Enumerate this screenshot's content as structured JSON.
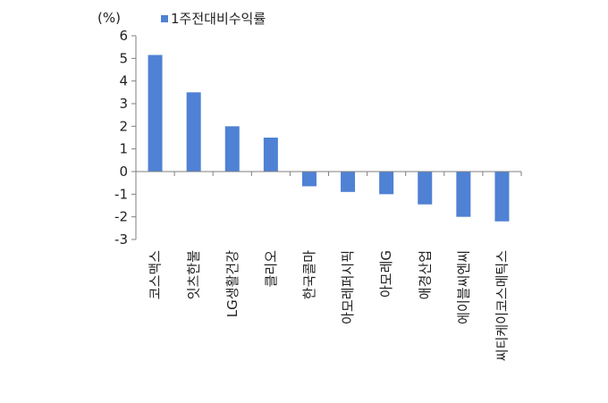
{
  "chart_data": {
    "type": "bar",
    "unit_label": "(%)",
    "legend": {
      "position": "top",
      "entries": [
        "1주전대비수익률"
      ]
    },
    "series": [
      {
        "name": "1주전대비수익률",
        "color": "#4f81d4",
        "values": [
          5.15,
          3.5,
          2.0,
          1.5,
          -0.65,
          -0.9,
          -1.0,
          -1.45,
          -2.0,
          -2.2
        ]
      }
    ],
    "categories": [
      "코스맥스",
      "잇츠한불",
      "LG생활건강",
      "클리오",
      "한국콜마",
      "아모레퍼시픽",
      "아모레G",
      "애경산업",
      "에이블씨엔씨",
      "씨티케이코스메틱스"
    ],
    "ylim": [
      -3,
      6
    ],
    "yticks": [
      -3,
      -2,
      -1,
      0,
      1,
      2,
      3,
      4,
      5,
      6
    ],
    "ytick_labels": [
      "-3",
      "-2",
      "-1",
      "0",
      "1",
      "2",
      "3",
      "4",
      "5",
      "6"
    ],
    "grid": false
  }
}
